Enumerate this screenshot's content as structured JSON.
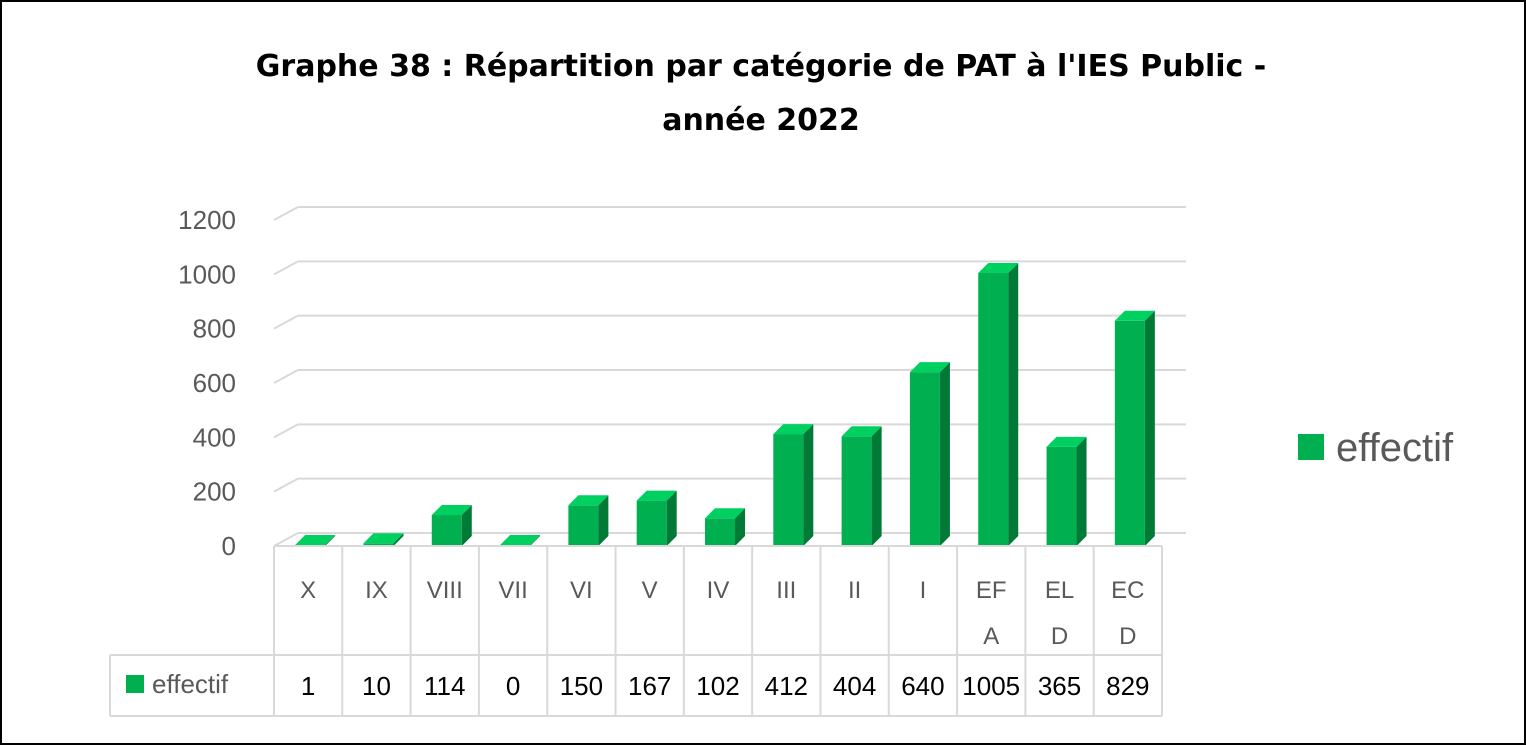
{
  "chart_data": {
    "type": "bar",
    "title_lines": [
      "Graphe 38 : Répartition par catégorie de PAT à l'IES Public -",
      "année 2022"
    ],
    "categories": [
      "X",
      "IX",
      "VIII",
      "VII",
      "VI",
      "V",
      "IV",
      "III",
      "II",
      "I",
      "EFA",
      "ELD",
      "ECD"
    ],
    "category_lines": [
      [
        "X"
      ],
      [
        "IX"
      ],
      [
        "VIII"
      ],
      [
        "VII"
      ],
      [
        "VI"
      ],
      [
        "V"
      ],
      [
        "IV"
      ],
      [
        "III"
      ],
      [
        "II"
      ],
      [
        "I"
      ],
      [
        "EF",
        "A"
      ],
      [
        "EL",
        "D"
      ],
      [
        "EC",
        "D"
      ]
    ],
    "series": [
      {
        "name": "effectif",
        "values": [
          1,
          10,
          114,
          0,
          150,
          167,
          102,
          412,
          404,
          640,
          1005,
          365,
          829
        ]
      }
    ],
    "ylim": [
      0,
      1200
    ],
    "yticks": [
      0,
      200,
      400,
      600,
      800,
      1000,
      1200
    ],
    "grid": true,
    "legend_position": "right",
    "data_table": true,
    "colors": {
      "bar_front": "#00b050",
      "bar_side": "#007a36",
      "bar_top": "#00d060",
      "grid": "#d9d9d9"
    }
  }
}
